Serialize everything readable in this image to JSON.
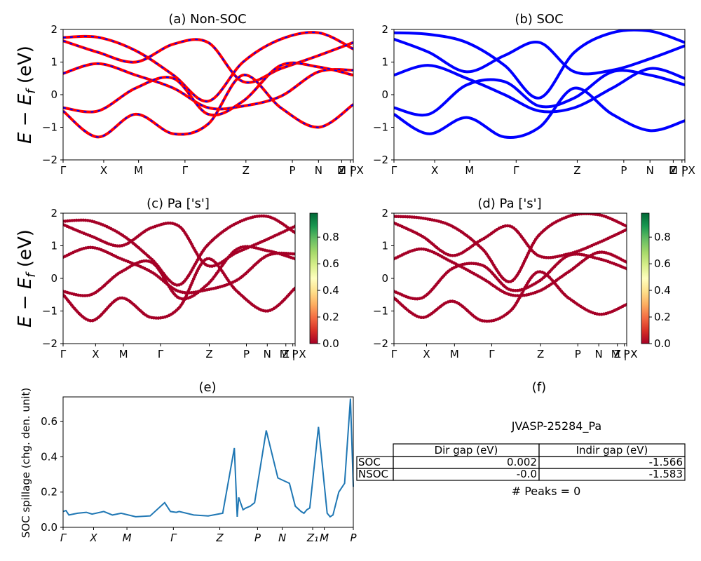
{
  "figure": {
    "panel_a": {
      "title": "(a) Non-SOC"
    },
    "panel_b": {
      "title": "(b) SOC"
    },
    "panel_c": {
      "title": "(c)  Pa ['s']"
    },
    "panel_d": {
      "title": "(d) Pa ['s']"
    },
    "panel_e": {
      "title": "(e)",
      "ylabel": "SOC spillage (chg. den. unit)"
    },
    "panel_f": {
      "title": "(f)",
      "material": "JVASP-25284_Pa",
      "columns": [
        "Dir gap (eV)",
        "Indir gap (eV)"
      ],
      "rows": [
        {
          "label": "SOC",
          "dir": "0.002",
          "indir": "-1.566"
        },
        {
          "label": "NSOC",
          "dir": "-0.0",
          "indir": "-1.583"
        }
      ],
      "peaks": "# Peaks = 0"
    },
    "band_ylabel": "E − E_f (eV)"
  },
  "colors": {
    "nonsoc_line": "#ff0000",
    "nonsoc_dash": "#0000ff",
    "soc_line": "#0000ff",
    "spillage_line": "#1f77b4",
    "colormap": [
      "#a50026",
      "#d73027",
      "#f46d43",
      "#fdae61",
      "#fee08b",
      "#ffffbf",
      "#d9ef8b",
      "#a6d96a",
      "#66bd63",
      "#1a9850",
      "#006837"
    ]
  },
  "chart_data": [
    {
      "type": "line",
      "panel": "a",
      "ylim": [
        -2,
        2
      ],
      "yticks": [
        "2",
        "1",
        "0",
        "−1",
        "−2"
      ],
      "xticks": [
        "Γ",
        "X",
        "M",
        "Γ",
        "Z",
        "P",
        "N",
        "Z",
        "M | X",
        "P"
      ],
      "kpath_xlim": [
        0,
        1
      ],
      "bands": [
        {
          "x": [
            0,
            0.12,
            0.25,
            0.38,
            0.5,
            0.62,
            0.75,
            0.88,
            1
          ],
          "y": [
            1.75,
            1.76,
            1.35,
            0.6,
            -0.2,
            1.0,
            1.7,
            1.9,
            1.4
          ]
        },
        {
          "x": [
            0,
            0.12,
            0.25,
            0.38,
            0.5,
            0.62,
            0.75,
            0.88,
            1
          ],
          "y": [
            1.65,
            1.3,
            1.0,
            1.55,
            1.6,
            0.4,
            0.8,
            1.2,
            1.6
          ]
        },
        {
          "x": [
            0,
            0.12,
            0.25,
            0.38,
            0.5,
            0.62,
            0.75,
            0.88,
            1
          ],
          "y": [
            0.65,
            0.95,
            0.6,
            0.2,
            -0.4,
            -0.35,
            -0.05,
            0.7,
            0.75
          ]
        },
        {
          "x": [
            0,
            0.12,
            0.25,
            0.38,
            0.5,
            0.62,
            0.75,
            0.88,
            1
          ],
          "y": [
            -0.4,
            -0.5,
            0.2,
            0.5,
            -0.6,
            -0.2,
            0.9,
            0.85,
            0.6
          ]
        },
        {
          "x": [
            0,
            0.12,
            0.25,
            0.38,
            0.5,
            0.62,
            0.75,
            0.88,
            1
          ],
          "y": [
            -0.5,
            -1.3,
            -0.6,
            -1.2,
            -0.9,
            0.6,
            -0.4,
            -1.0,
            -0.3
          ]
        }
      ]
    },
    {
      "type": "line",
      "panel": "b",
      "ylim": [
        -2,
        2
      ],
      "yticks": [
        "2",
        "1",
        "0",
        "−1",
        "−2"
      ],
      "xticks": [
        "Γ",
        "X",
        "M",
        "Γ",
        "Z",
        "P",
        "N",
        "Z",
        "M | X",
        "P"
      ],
      "kpath_xlim": [
        0,
        1
      ],
      "bands": [
        {
          "x": [
            0,
            0.12,
            0.25,
            0.38,
            0.5,
            0.62,
            0.75,
            0.88,
            1
          ],
          "y": [
            1.9,
            1.85,
            1.6,
            0.9,
            -0.1,
            1.3,
            1.9,
            1.95,
            1.6
          ]
        },
        {
          "x": [
            0,
            0.12,
            0.25,
            0.38,
            0.5,
            0.62,
            0.75,
            0.88,
            1
          ],
          "y": [
            1.7,
            1.3,
            0.7,
            1.2,
            1.6,
            0.7,
            0.75,
            1.1,
            1.5
          ]
        },
        {
          "x": [
            0,
            0.12,
            0.25,
            0.38,
            0.5,
            0.62,
            0.75,
            0.88,
            1
          ],
          "y": [
            0.6,
            0.9,
            0.5,
            0.0,
            -0.5,
            -0.4,
            0.2,
            0.8,
            0.5
          ]
        },
        {
          "x": [
            0,
            0.12,
            0.25,
            0.38,
            0.5,
            0.62,
            0.75,
            0.88,
            1
          ],
          "y": [
            -0.4,
            -0.6,
            0.3,
            0.4,
            -0.35,
            -0.1,
            0.7,
            0.6,
            0.3
          ]
        },
        {
          "x": [
            0,
            0.12,
            0.25,
            0.38,
            0.5,
            0.62,
            0.75,
            0.88,
            1
          ],
          "y": [
            -0.6,
            -1.2,
            -0.7,
            -1.3,
            -1.0,
            0.2,
            -0.6,
            -1.1,
            -0.8
          ]
        }
      ]
    },
    {
      "type": "scatter",
      "panel": "c",
      "ylim": [
        -2,
        2
      ],
      "colorbar": {
        "ticks": [
          "0.8",
          "0.6",
          "0.4",
          "0.2",
          "0.0"
        ],
        "range": [
          0.0,
          0.98
        ]
      },
      "yticks": [
        "2",
        "1",
        "0",
        "−1",
        "−2"
      ],
      "xticks": [
        "Γ",
        "X",
        "M",
        "Γ",
        "Z",
        "P",
        "N",
        "Z",
        "M | X",
        "P"
      ],
      "kpath_xlim": [
        0,
        1
      ],
      "bands": [
        {
          "x": [
            0,
            0.12,
            0.25,
            0.38,
            0.5,
            0.62,
            0.75,
            0.88,
            1
          ],
          "y": [
            1.75,
            1.76,
            1.35,
            0.6,
            -0.2,
            1.0,
            1.7,
            1.9,
            1.4
          ]
        },
        {
          "x": [
            0,
            0.12,
            0.25,
            0.38,
            0.5,
            0.62,
            0.75,
            0.88,
            1
          ],
          "y": [
            1.65,
            1.3,
            1.0,
            1.55,
            1.6,
            0.4,
            0.8,
            1.2,
            1.6
          ]
        },
        {
          "x": [
            0,
            0.12,
            0.25,
            0.38,
            0.5,
            0.62,
            0.75,
            0.88,
            1
          ],
          "y": [
            0.65,
            0.95,
            0.6,
            0.2,
            -0.4,
            -0.35,
            -0.05,
            0.7,
            0.75
          ]
        },
        {
          "x": [
            0,
            0.12,
            0.25,
            0.38,
            0.5,
            0.62,
            0.75,
            0.88,
            1
          ],
          "y": [
            -0.4,
            -0.5,
            0.2,
            0.5,
            -0.6,
            -0.2,
            0.9,
            0.85,
            0.6
          ]
        },
        {
          "x": [
            0,
            0.12,
            0.25,
            0.38,
            0.5,
            0.62,
            0.75,
            0.88,
            1
          ],
          "y": [
            -0.5,
            -1.3,
            -0.6,
            -1.2,
            -0.9,
            0.6,
            -0.4,
            -1.0,
            -0.3
          ]
        }
      ]
    },
    {
      "type": "scatter",
      "panel": "d",
      "ylim": [
        -2,
        2
      ],
      "colorbar": {
        "ticks": [
          "0.8",
          "0.6",
          "0.4",
          "0.2",
          "0.0"
        ],
        "range": [
          0.0,
          0.98
        ]
      },
      "yticks": [
        "2",
        "1",
        "0",
        "−1",
        "−2"
      ],
      "xticks": [
        "Γ",
        "X",
        "M",
        "Γ",
        "Z",
        "P",
        "N",
        "Z",
        "M | X",
        "P"
      ],
      "kpath_xlim": [
        0,
        1
      ],
      "bands": [
        {
          "x": [
            0,
            0.12,
            0.25,
            0.38,
            0.5,
            0.62,
            0.75,
            0.88,
            1
          ],
          "y": [
            1.9,
            1.85,
            1.6,
            0.9,
            -0.1,
            1.3,
            1.9,
            1.95,
            1.6
          ]
        },
        {
          "x": [
            0,
            0.12,
            0.25,
            0.38,
            0.5,
            0.62,
            0.75,
            0.88,
            1
          ],
          "y": [
            1.7,
            1.3,
            0.7,
            1.2,
            1.6,
            0.7,
            0.75,
            1.1,
            1.5
          ]
        },
        {
          "x": [
            0,
            0.12,
            0.25,
            0.38,
            0.5,
            0.62,
            0.75,
            0.88,
            1
          ],
          "y": [
            0.6,
            0.9,
            0.5,
            0.0,
            -0.5,
            -0.4,
            0.2,
            0.8,
            0.5
          ]
        },
        {
          "x": [
            0,
            0.12,
            0.25,
            0.38,
            0.5,
            0.62,
            0.75,
            0.88,
            1
          ],
          "y": [
            -0.4,
            -0.6,
            0.3,
            0.4,
            -0.35,
            -0.1,
            0.7,
            0.6,
            0.3
          ]
        },
        {
          "x": [
            0,
            0.12,
            0.25,
            0.38,
            0.5,
            0.62,
            0.75,
            0.88,
            1
          ],
          "y": [
            -0.6,
            -1.2,
            -0.7,
            -1.3,
            -1.0,
            0.2,
            -0.6,
            -1.1,
            -0.8
          ]
        }
      ]
    },
    {
      "type": "line",
      "panel": "e",
      "ylim": [
        0.0,
        0.74
      ],
      "yticks": [
        "0.6",
        "0.4",
        "0.2",
        "0.0"
      ],
      "xticks": [
        "Γ",
        "X",
        "M",
        "Γ",
        "Z",
        "P",
        "N",
        "Z₁",
        "M",
        "P"
      ],
      "kpath_xlim": [
        0,
        1
      ],
      "x": [
        0,
        0.01,
        0.02,
        0.05,
        0.08,
        0.1,
        0.14,
        0.17,
        0.2,
        0.25,
        0.3,
        0.35,
        0.37,
        0.39,
        0.4,
        0.45,
        0.5,
        0.55,
        0.59,
        0.6,
        0.605,
        0.62,
        0.63,
        0.645,
        0.66,
        0.7,
        0.74,
        0.78,
        0.8,
        0.82,
        0.83,
        0.84,
        0.85,
        0.88,
        0.91,
        0.92,
        0.93,
        0.95,
        0.97,
        0.99,
        1
      ],
      "y": [
        0.09,
        0.095,
        0.07,
        0.08,
        0.085,
        0.075,
        0.09,
        0.07,
        0.08,
        0.06,
        0.065,
        0.14,
        0.09,
        0.085,
        0.09,
        0.07,
        0.065,
        0.08,
        0.45,
        0.06,
        0.17,
        0.1,
        0.11,
        0.12,
        0.14,
        0.55,
        0.28,
        0.25,
        0.12,
        0.09,
        0.08,
        0.1,
        0.11,
        0.57,
        0.08,
        0.06,
        0.07,
        0.2,
        0.25,
        0.73,
        0.23
      ]
    }
  ]
}
